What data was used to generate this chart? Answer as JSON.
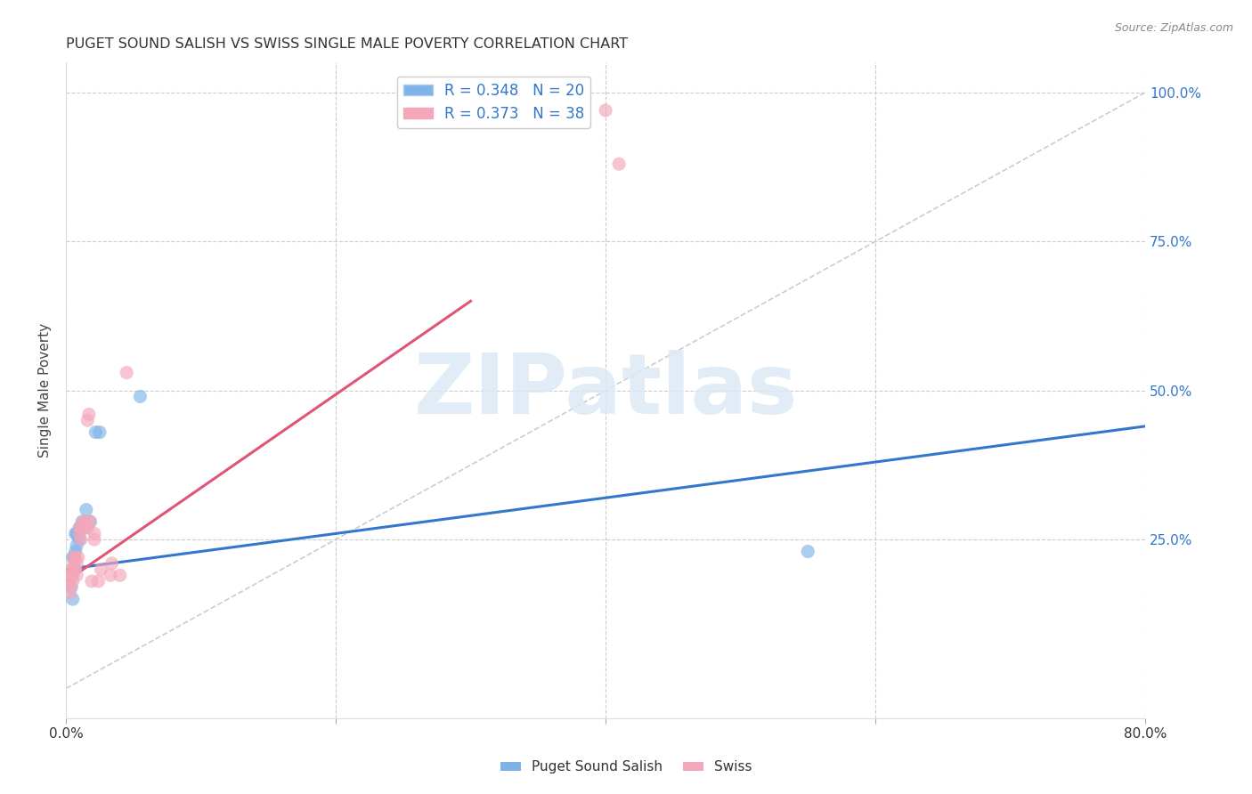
{
  "title": "PUGET SOUND SALISH VS SWISS SINGLE MALE POVERTY CORRELATION CHART",
  "source": "Source: ZipAtlas.com",
  "ylabel": "Single Male Poverty",
  "xlim": [
    0.0,
    80.0
  ],
  "ylim": [
    -5.0,
    105.0
  ],
  "xtick_vals": [
    0.0,
    20.0,
    40.0,
    60.0,
    80.0
  ],
  "xtick_labels": [
    "0.0%",
    "",
    "",
    "",
    "80.0%"
  ],
  "ytick_vals_right": [
    100.0,
    75.0,
    50.0,
    25.0
  ],
  "ytick_labels_right": [
    "100.0%",
    "75.0%",
    "50.0%",
    "25.0%"
  ],
  "grid_color": "#cccccc",
  "background_color": "#ffffff",
  "puget_color": "#7fb3e8",
  "swiss_color": "#f4a7b9",
  "puget_R": 0.348,
  "puget_N": 20,
  "swiss_R": 0.373,
  "swiss_N": 38,
  "puget_scatter_x": [
    0.4,
    0.5,
    0.5,
    0.6,
    0.6,
    0.7,
    0.7,
    0.8,
    0.8,
    0.9,
    1.0,
    1.0,
    1.2,
    1.3,
    1.5,
    1.8,
    2.2,
    2.5,
    5.5,
    55.0
  ],
  "puget_scatter_y": [
    17.0,
    15.0,
    22.0,
    22.0,
    20.0,
    26.0,
    23.0,
    26.0,
    24.0,
    26.0,
    27.0,
    25.0,
    28.0,
    27.0,
    30.0,
    28.0,
    43.0,
    43.0,
    49.0,
    23.0
  ],
  "swiss_scatter_x": [
    0.2,
    0.3,
    0.3,
    0.4,
    0.4,
    0.5,
    0.5,
    0.5,
    0.6,
    0.6,
    0.7,
    0.7,
    0.8,
    0.8,
    0.9,
    1.0,
    1.0,
    1.1,
    1.2,
    1.3,
    1.4,
    1.5,
    1.6,
    1.6,
    1.7,
    1.8,
    1.9,
    2.1,
    2.1,
    2.4,
    2.6,
    3.3,
    3.4,
    4.0,
    4.5,
    38.0,
    40.0,
    41.0
  ],
  "swiss_scatter_y": [
    18.0,
    17.0,
    16.0,
    20.0,
    19.0,
    20.0,
    19.0,
    18.0,
    22.0,
    21.0,
    20.0,
    22.0,
    21.0,
    19.0,
    22.0,
    27.0,
    26.0,
    25.0,
    27.0,
    28.0,
    28.0,
    27.0,
    27.0,
    45.0,
    46.0,
    28.0,
    18.0,
    25.0,
    26.0,
    18.0,
    20.0,
    19.0,
    21.0,
    19.0,
    53.0,
    97.0,
    97.0,
    88.0
  ],
  "puget_line_x": [
    0.0,
    80.0
  ],
  "puget_line_y": [
    20.0,
    44.0
  ],
  "swiss_line_x": [
    0.0,
    30.0
  ],
  "swiss_line_y": [
    18.0,
    65.0
  ],
  "diag_line_x": [
    0.0,
    80.0
  ],
  "diag_line_y": [
    0.0,
    100.0
  ],
  "diag_color": "#cccccc",
  "puget_line_color": "#3377cc",
  "swiss_line_color": "#e05575",
  "watermark_text": "ZIPatlas",
  "watermark_color": "#dce9f5"
}
